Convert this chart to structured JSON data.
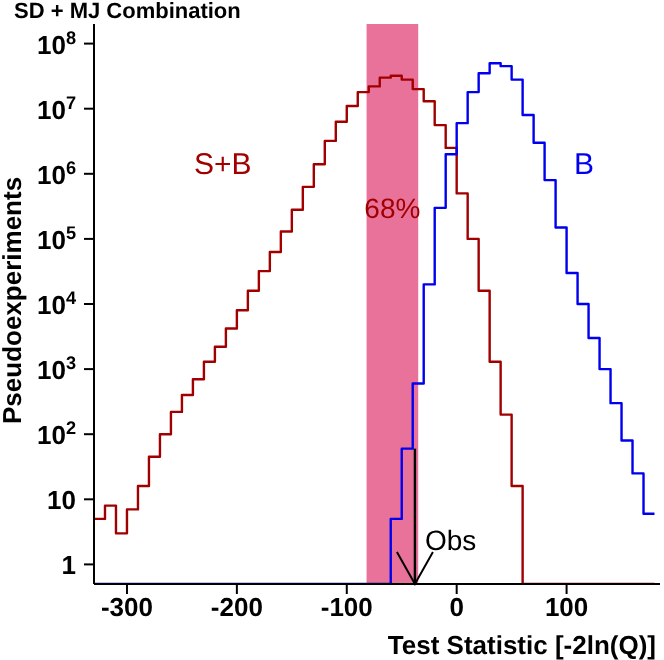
{
  "chart_data": {
    "type": "histogram",
    "title": "SD + MJ Combination",
    "xlabel": "Test Statistic [-2ln(Q)]",
    "ylabel": "Pseudoexperiments",
    "bins": [
      -330,
      -320,
      -310,
      -300,
      -290,
      -280,
      -270,
      -260,
      -250,
      -240,
      -230,
      -220,
      -210,
      -200,
      -190,
      -180,
      -170,
      -160,
      -150,
      -140,
      -130,
      -120,
      -110,
      -100,
      -90,
      -80,
      -70,
      -60,
      -50,
      -40,
      -30,
      -20,
      -10,
      0,
      10,
      20,
      30,
      40,
      50,
      60,
      70,
      80,
      90,
      100,
      110,
      120,
      130,
      140,
      150,
      160,
      170,
      180
    ],
    "series": [
      {
        "name": "S+B",
        "color": "#a00000",
        "values": [
          5,
          8,
          3,
          7,
          16,
          45,
          100,
          220,
          400,
          700,
          1300,
          2200,
          4200,
          8000,
          16000,
          32000,
          63000,
          130000,
          280000,
          630000,
          1400000,
          3200000,
          6300000,
          11000000,
          18000000,
          22000000,
          30000000,
          32000000,
          28000000,
          20000000,
          13000000,
          5600000,
          2500000,
          500000,
          100000,
          16000,
          1300,
          200,
          16,
          null,
          null,
          null,
          null,
          null,
          null,
          null,
          null,
          null,
          null,
          null,
          null
        ]
      },
      {
        "name": "B",
        "color": "#0000ee",
        "values": [
          null,
          null,
          null,
          null,
          null,
          null,
          null,
          null,
          null,
          null,
          null,
          null,
          null,
          null,
          null,
          null,
          null,
          null,
          null,
          null,
          null,
          null,
          null,
          null,
          null,
          null,
          null,
          5,
          60,
          600,
          20000,
          300000,
          2000000,
          6000000,
          18000000,
          35000000,
          50000000,
          45000000,
          28000000,
          8000000,
          3000000,
          800000,
          150000,
          30000,
          10000,
          3000,
          1000,
          300,
          80,
          25,
          6
        ]
      }
    ],
    "log": "y",
    "xlim": [
      -330,
      185
    ],
    "ylim": [
      0.5,
      200000000
    ],
    "xticks": [
      -300,
      -200,
      -100,
      0,
      100
    ],
    "yticks": [
      1,
      10,
      {
        "value": 100,
        "label": "10$^{2}$"
      },
      {
        "value": 1000,
        "label": "10$^{3}$"
      },
      {
        "value": 10000,
        "label": "10$^{4}$"
      },
      {
        "value": 100000,
        "label": "10$^{5}$"
      },
      {
        "value": 1000000,
        "label": "10$^{6}$"
      },
      {
        "value": 10000000,
        "label": "10$^{7}$"
      },
      {
        "value": 100000000,
        "label": "10$^{8}$"
      }
    ],
    "bands": [
      {
        "axis": "x",
        "from": -82,
        "to": -35,
        "label": "68%",
        "color": "#e8729a"
      }
    ],
    "ref_lines": [
      {
        "axis": "x",
        "value": -38,
        "label": "Obs",
        "color": "#000000"
      }
    ],
    "marker": "none"
  }
}
